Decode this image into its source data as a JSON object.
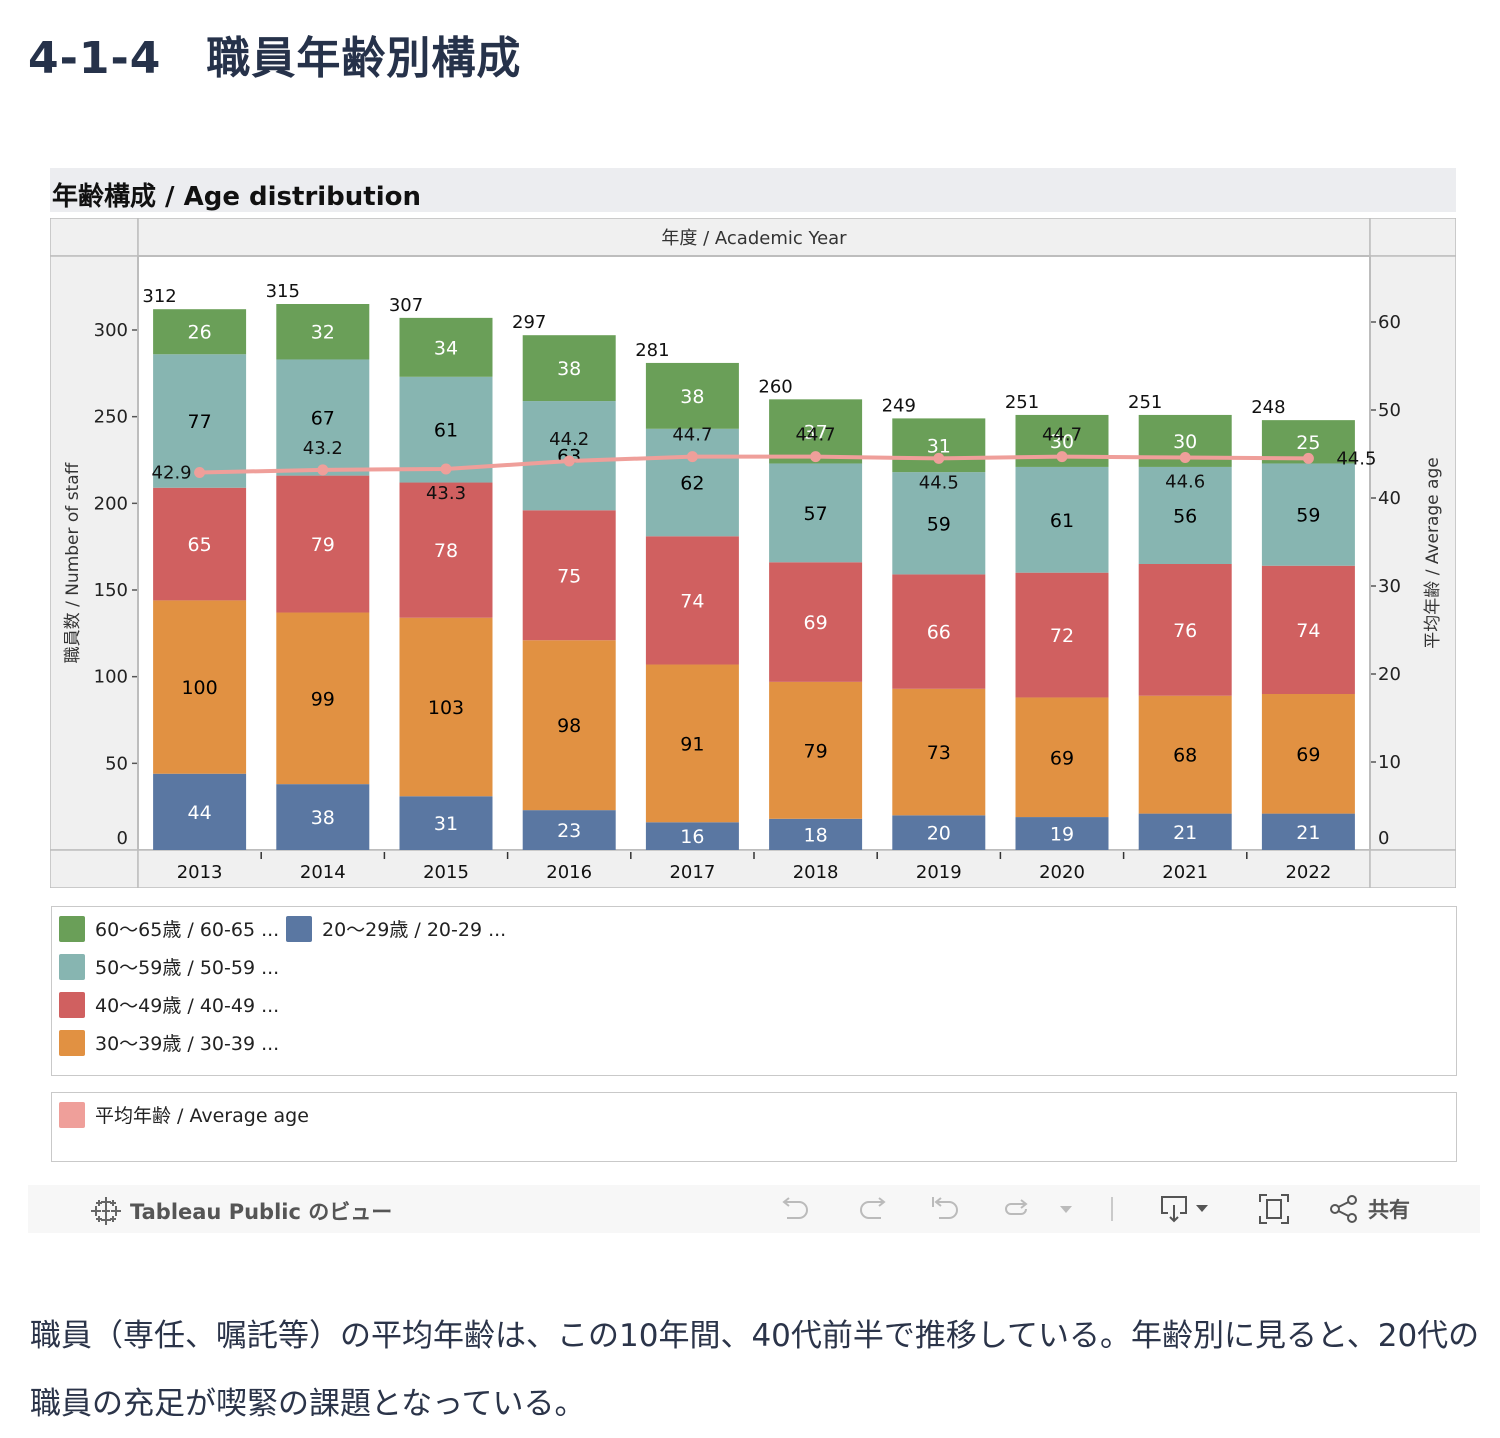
{
  "page": {
    "title": "4-1-4　職員年齢別構成",
    "description": "職員（専任、嘱託等）の平均年齢は、この10年間、40代前半で推移している。年齢別に見ると、20代の職員の充足が喫緊の課題となっている。"
  },
  "viz": {
    "title": "年齢構成 / Age distribution"
  },
  "colors": {
    "age_60_65": "#6a9f58",
    "age_50_59": "#87b5b1",
    "age_40_49": "#d06060",
    "age_30_39": "#e19142",
    "age_20_29": "#5a77a2",
    "average_age": "#ef9f9a"
  },
  "chart_data": {
    "type": "bar",
    "stacked": true,
    "title": "年齢構成 / Age distribution",
    "column_header": "年度 / Academic Year",
    "categories": [
      "2013",
      "2014",
      "2015",
      "2016",
      "2017",
      "2018",
      "2019",
      "2020",
      "2021",
      "2022"
    ],
    "series": [
      {
        "key": "age_20_29",
        "name": "20〜29歳 / 20-29 ...",
        "values": [
          44,
          38,
          31,
          23,
          16,
          18,
          20,
          19,
          21,
          21
        ],
        "label_color": "#ffffff"
      },
      {
        "key": "age_30_39",
        "name": "30〜39歳 / 30-39 ...",
        "values": [
          100,
          99,
          103,
          98,
          91,
          79,
          73,
          69,
          68,
          69
        ],
        "label_color": "#000000"
      },
      {
        "key": "age_40_49",
        "name": "40〜49歳 / 40-49 ...",
        "values": [
          65,
          79,
          78,
          75,
          74,
          69,
          66,
          72,
          76,
          74
        ],
        "label_color": "#ffffff"
      },
      {
        "key": "age_50_59",
        "name": "50〜59歳 / 50-59 ...",
        "values": [
          77,
          67,
          61,
          63,
          62,
          57,
          59,
          61,
          56,
          59
        ],
        "label_color": "#000000"
      },
      {
        "key": "age_60_65",
        "name": "60〜65歳 / 60-65 ...",
        "values": [
          26,
          32,
          34,
          38,
          38,
          37,
          31,
          30,
          30,
          25
        ],
        "label_color": "#ffffff"
      }
    ],
    "totals": [
      312,
      315,
      307,
      297,
      281,
      260,
      249,
      251,
      251,
      248
    ],
    "line_series": {
      "key": "average_age",
      "name": "平均年齢 / Average age",
      "values": [
        42.9,
        43.2,
        43.3,
        44.2,
        44.7,
        44.7,
        44.5,
        44.7,
        44.6,
        44.5
      ],
      "axis": "right"
    },
    "ylabel": "職員数 / Number of staff",
    "ylim": [
      0,
      330
    ],
    "yticks": [
      0,
      50,
      100,
      150,
      200,
      250,
      300
    ],
    "y2label": "平均年齢 / Average age",
    "y2lim": [
      0,
      63
    ],
    "y2ticks": [
      0,
      10,
      20,
      30,
      40,
      50,
      60
    ],
    "legend_position": "bottom",
    "grid": false
  },
  "legend": {
    "bar_items": [
      {
        "label": "60〜65歳 / 60-65 ...",
        "color_key": "age_60_65"
      },
      {
        "label": "50〜59歳 / 50-59 ...",
        "color_key": "age_50_59"
      },
      {
        "label": "40〜49歳 / 40-49 ...",
        "color_key": "age_40_49"
      },
      {
        "label": "30〜39歳 / 30-39 ...",
        "color_key": "age_30_39"
      },
      {
        "label": "20〜29歳 / 20-29 ...",
        "color_key": "age_20_29"
      }
    ],
    "line_item": {
      "label": "平均年齢 / Average age",
      "color_key": "average_age"
    }
  },
  "toolbar": {
    "brand_label": "Tableau Public のビュー",
    "share_label": "共有",
    "icons": [
      "undo-icon",
      "redo-icon",
      "revert-icon",
      "refresh-icon",
      "dropdown-icon",
      "download-icon",
      "fullscreen-icon",
      "share-icon"
    ]
  }
}
